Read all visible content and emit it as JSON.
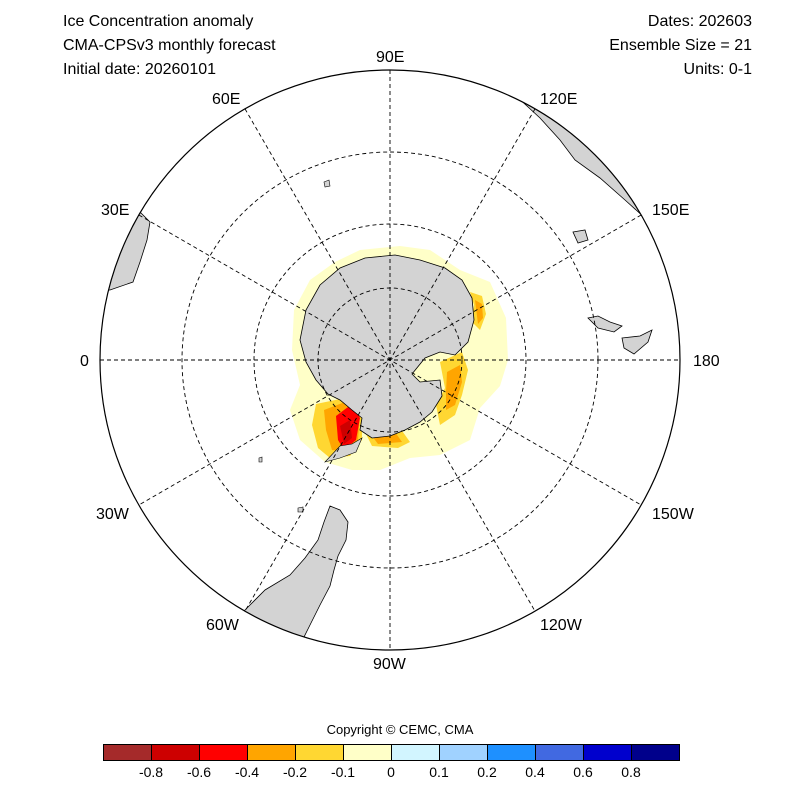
{
  "header": {
    "title": "Ice Concentration anomaly",
    "model": "CMA-CPSv3 monthly forecast",
    "initial_date": "Initial date: 20260101",
    "dates": "Dates: 202603",
    "ensemble": "Ensemble Size = 21",
    "units": "Units: 0-1"
  },
  "longitude_labels": {
    "e90": "90E",
    "e120": "120E",
    "e150": "150E",
    "e180": "180",
    "w150": "150W",
    "w120": "120W",
    "w90": "90W",
    "w60": "60W",
    "w30": "30W",
    "zero": "0",
    "e30": "30E",
    "e60": "60E"
  },
  "copyright": "Copyright © CEMC, CMA",
  "colorbar": {
    "colors": [
      "#a52a2a",
      "#cd0000",
      "#ff0000",
      "#ffa500",
      "#ffd732",
      "#ffffc8",
      "#d2f5ff",
      "#a0d2ff",
      "#1e90ff",
      "#4169e1",
      "#0000cd",
      "#00008b"
    ],
    "labels": [
      "-0.8",
      "-0.6",
      "-0.4",
      "-0.2",
      "-0.1",
      "0",
      "0.1",
      "0.2",
      "0.4",
      "0.6",
      "0.8"
    ]
  },
  "colors": {
    "land": "#d3d3d3",
    "grid": "#000000"
  }
}
